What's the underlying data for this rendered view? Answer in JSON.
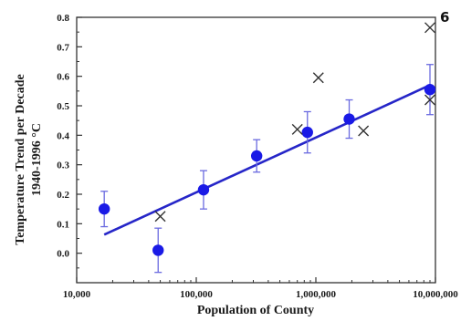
{
  "page_number": "6",
  "chart_data": {
    "type": "scatter",
    "title": "",
    "ylabel_line1": "Temperature Trend per Decade",
    "ylabel_line2": "1940-1996 °C",
    "xlabel": "Population of County",
    "x_scale": "log",
    "xlim": [
      10000,
      10000000
    ],
    "ylim": [
      -0.1,
      0.8
    ],
    "x_ticks": [
      {
        "value": 10000,
        "label": "10,000"
      },
      {
        "value": 100000,
        "label": "100,000"
      },
      {
        "value": 1000000,
        "label": "1,000,000"
      },
      {
        "value": 10000000,
        "label": "10,000,000"
      }
    ],
    "y_ticks": [
      {
        "value": 0.0,
        "label": "0.0"
      },
      {
        "value": 0.1,
        "label": "0.1"
      },
      {
        "value": 0.2,
        "label": "0.2"
      },
      {
        "value": 0.3,
        "label": "0.3"
      },
      {
        "value": 0.4,
        "label": "0.4"
      },
      {
        "value": 0.5,
        "label": "0.5"
      },
      {
        "value": 0.6,
        "label": "0.6"
      },
      {
        "value": 0.7,
        "label": "0.7"
      },
      {
        "value": 0.8,
        "label": "0.8"
      }
    ],
    "grid": false,
    "series": [
      {
        "marker": "circle",
        "color": "#1a1ae6",
        "points": [
          {
            "x": 17000,
            "y": 0.15,
            "err": 0.06
          },
          {
            "x": 48000,
            "y": 0.01,
            "err": 0.075
          },
          {
            "x": 115000,
            "y": 0.215,
            "err": 0.065
          },
          {
            "x": 320000,
            "y": 0.33,
            "err": 0.055
          },
          {
            "x": 850000,
            "y": 0.41,
            "err": 0.07
          },
          {
            "x": 1900000,
            "y": 0.455,
            "err": 0.065
          },
          {
            "x": 9000000,
            "y": 0.555,
            "err": 0.085
          }
        ]
      },
      {
        "marker": "x",
        "color": "#333333",
        "points": [
          {
            "x": 50000,
            "y": 0.125
          },
          {
            "x": 700000,
            "y": 0.42
          },
          {
            "x": 1050000,
            "y": 0.595
          },
          {
            "x": 2500000,
            "y": 0.415
          },
          {
            "x": 9000000,
            "y": 0.765
          },
          {
            "x": 9000000,
            "y": 0.52
          }
        ]
      }
    ],
    "trend_line": {
      "color": "#2626c8",
      "from": {
        "x": 17000,
        "y": 0.063
      },
      "to": {
        "x": 9000000,
        "y": 0.57
      }
    }
  }
}
